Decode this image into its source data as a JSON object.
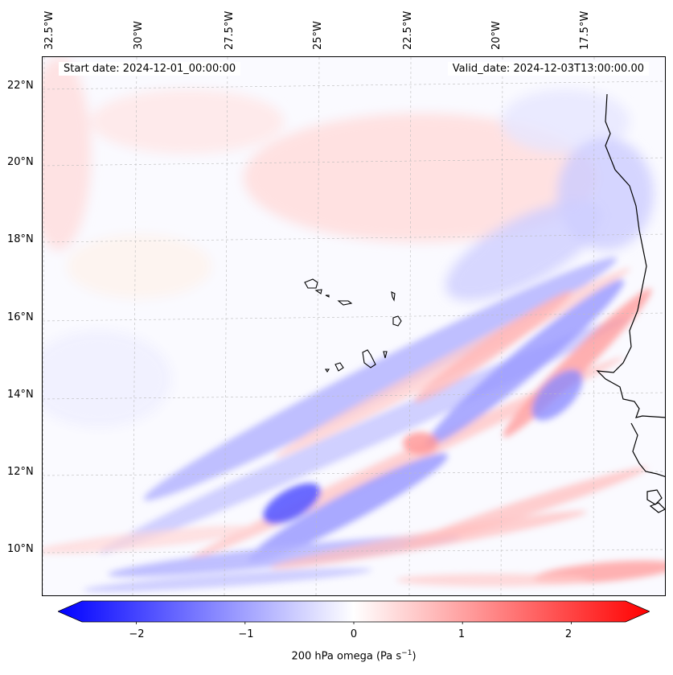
{
  "map": {
    "start_date": "Start date: 2024-12-01_00:00:00",
    "valid_date": "Valid_date: 2024-12-03T13:00:00.00",
    "lon_labels": [
      "32.5°W",
      "30°W",
      "27.5°W",
      "25°W",
      "22.5°W",
      "20°W",
      "17.5°W"
    ],
    "lat_labels": [
      "22°N",
      "20°N",
      "18°N",
      "16°N",
      "14°N",
      "12°N",
      "10°N"
    ],
    "colors": {
      "negative": "#0000ff",
      "zero": "#ffffff",
      "positive": "#ff0000",
      "coast": "#000000"
    }
  },
  "colorbar": {
    "ticks": [
      "−2",
      "−1",
      "0",
      "1",
      "2"
    ],
    "tick_values": [
      -2,
      -1,
      0,
      1,
      2
    ],
    "range": [
      -2.5,
      2.5
    ],
    "label": "200 hPa omega (Pa s",
    "label_exp": "−1",
    "label_end": ")"
  }
}
